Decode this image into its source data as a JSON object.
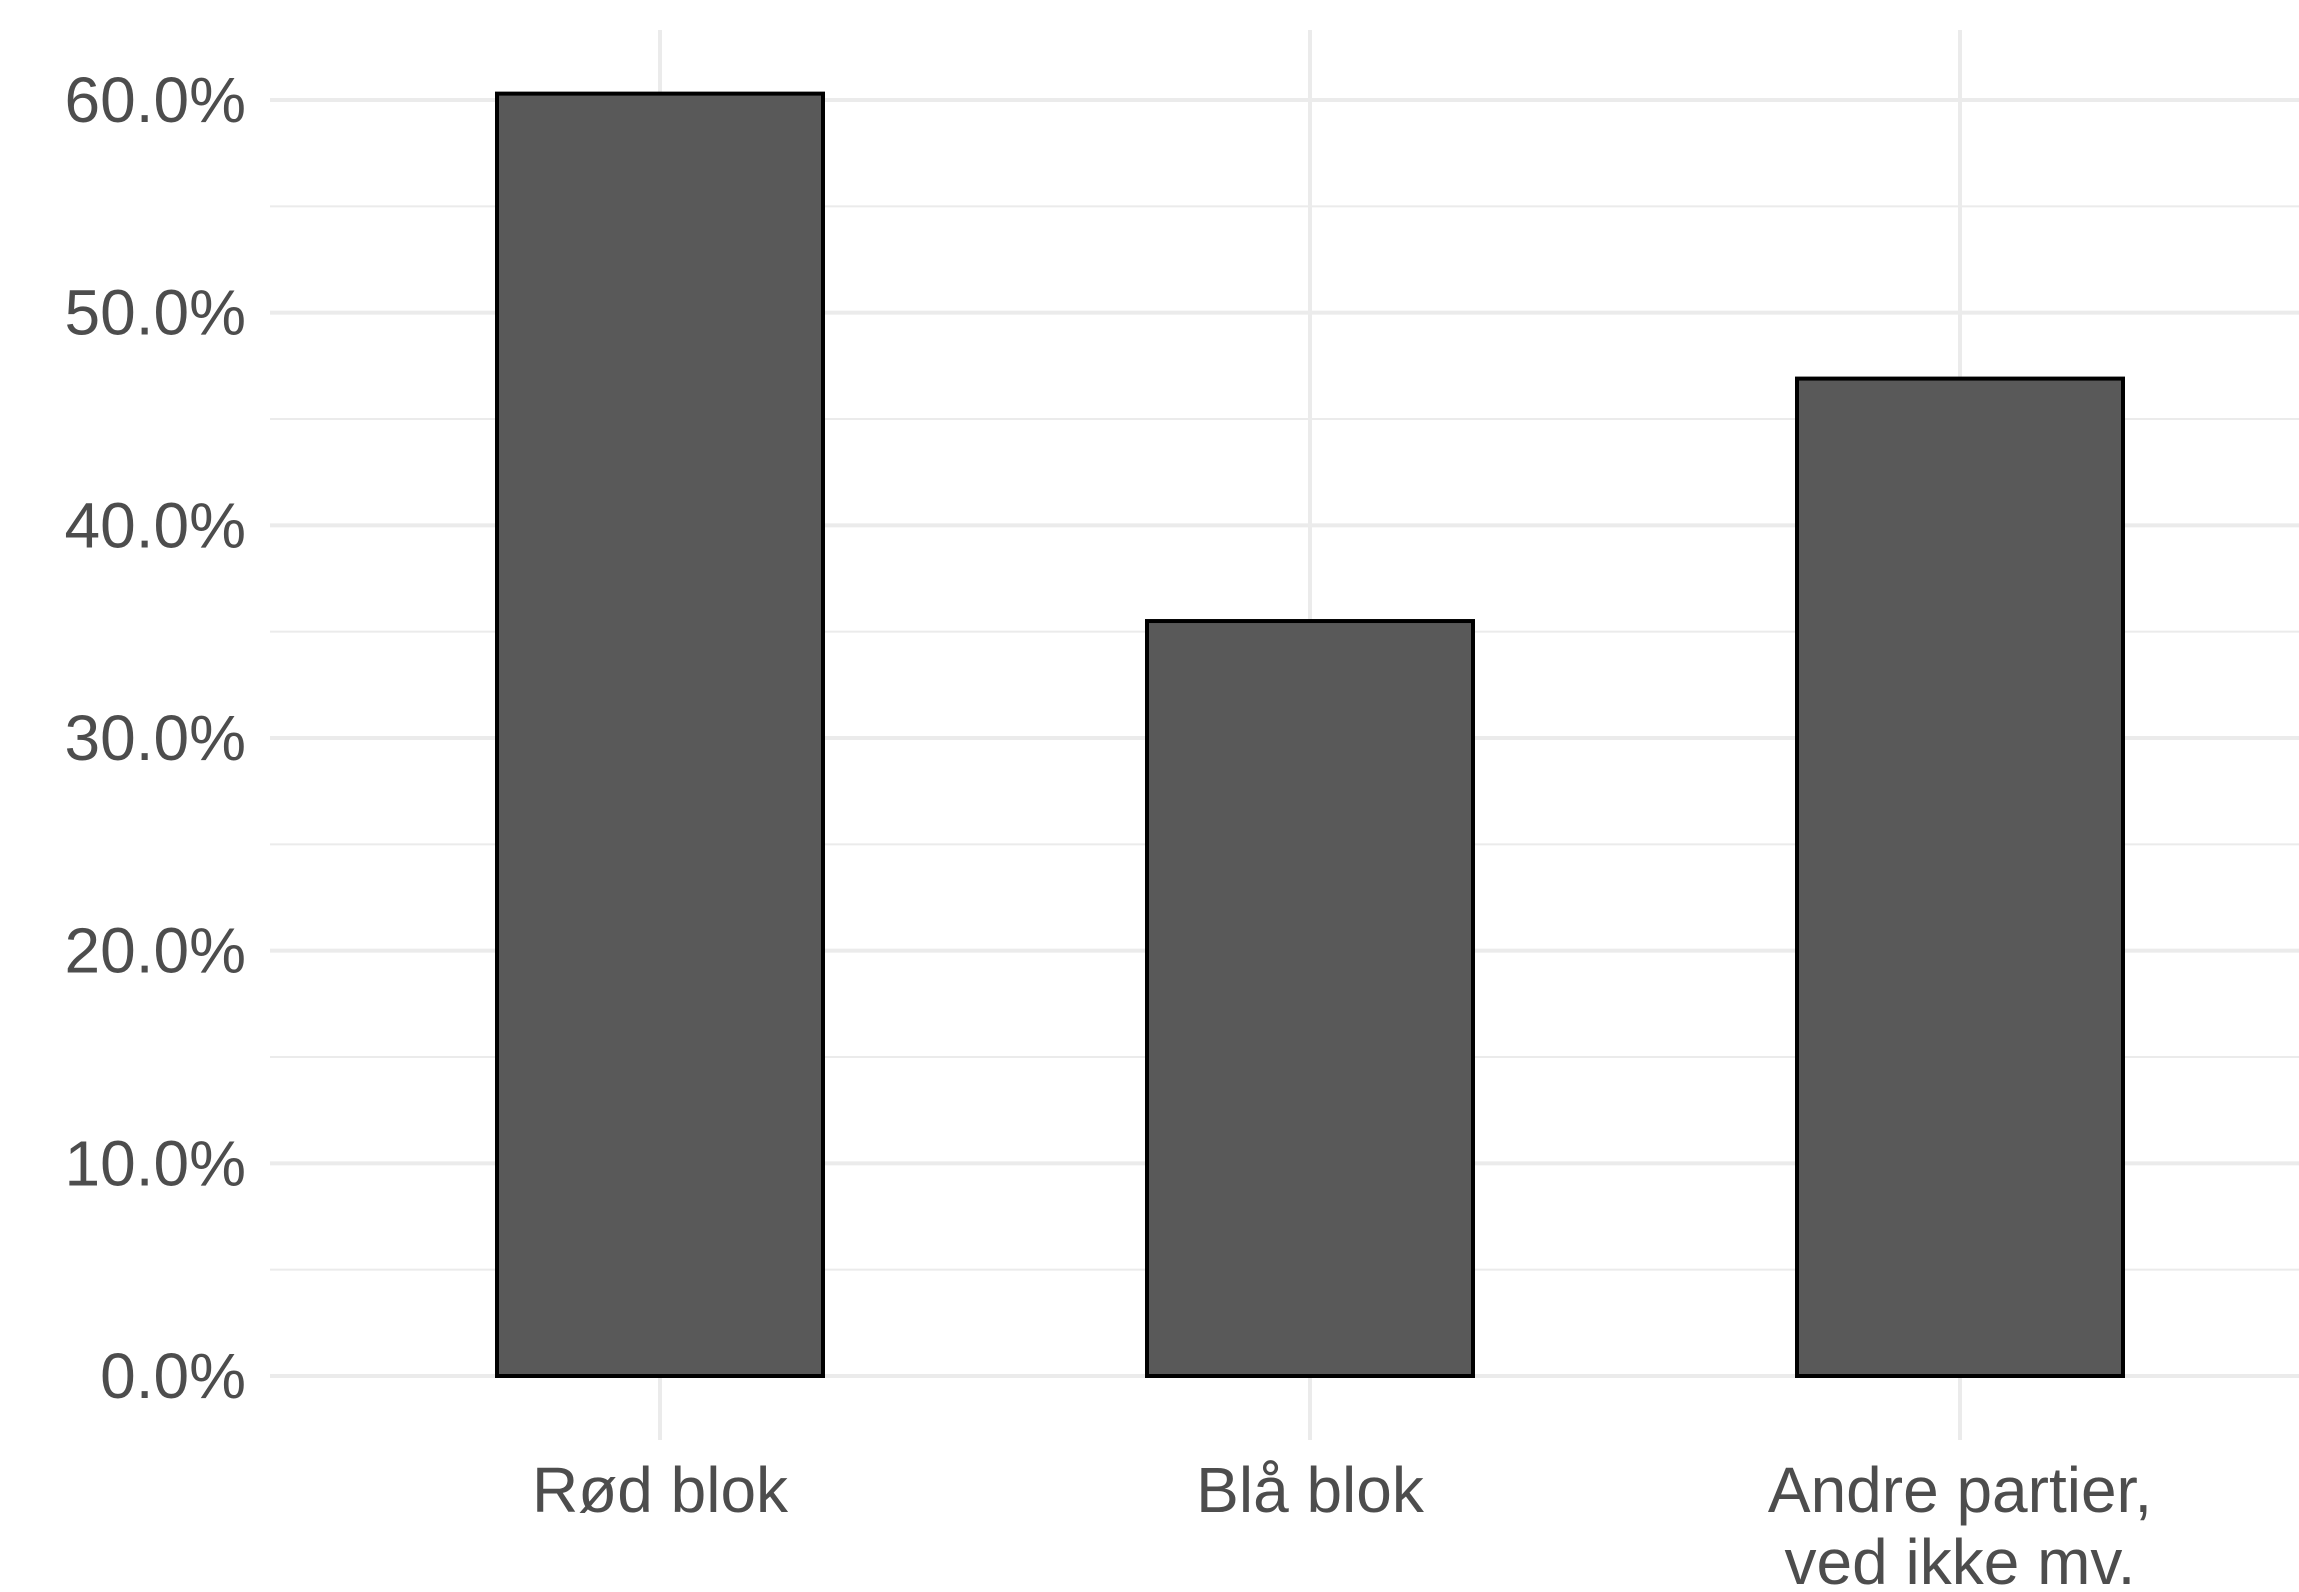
{
  "chart_data": {
    "type": "bar",
    "title": "",
    "xlabel": "",
    "ylabel": "",
    "categories": [
      [
        "Rød blok"
      ],
      [
        "Blå blok"
      ],
      [
        "Andre partier,",
        "ved ikke mv."
      ]
    ],
    "values": [
      60.3,
      35.5,
      46.9
    ],
    "ylim": [
      0,
      60
    ],
    "yticks": [
      0,
      10,
      20,
      30,
      40,
      50,
      60
    ],
    "ytick_labels": [
      "0.0%",
      "10.0%",
      "20.0%",
      "30.0%",
      "40.0%",
      "50.0%",
      "60.0%"
    ],
    "grid": true,
    "legend": "none",
    "colors": {
      "bar_fill": "#595959",
      "bar_stroke": "#000000",
      "grid": "#ebebeb",
      "tick_text": "#4d4d4d",
      "background": "#ffffff"
    }
  }
}
